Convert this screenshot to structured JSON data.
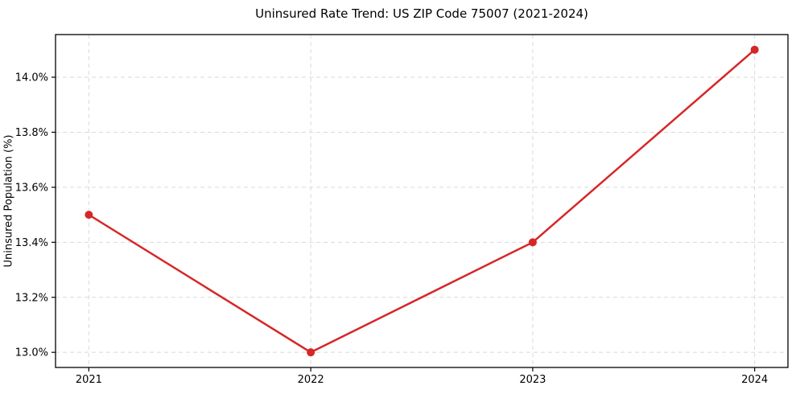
{
  "chart_data": {
    "type": "line",
    "title": "Uninsured Rate Trend: US ZIP Code 75007 (2021-2024)",
    "xlabel": "",
    "ylabel": "Uninsured Population (%)",
    "categories": [
      "2021",
      "2022",
      "2023",
      "2024"
    ],
    "x": [
      2021,
      2022,
      2023,
      2024
    ],
    "values": [
      13.5,
      13.0,
      13.4,
      14.1
    ],
    "yticks": [
      13.0,
      13.2,
      13.4,
      13.6,
      13.8,
      14.0
    ],
    "ytick_labels": [
      "13.0%",
      "13.2%",
      "13.4%",
      "13.6%",
      "13.8%",
      "14.0%"
    ],
    "xlim": [
      2020.85,
      2024.15
    ],
    "ylim": [
      12.945,
      14.155
    ],
    "grid": true,
    "grid_style": "dashed",
    "legend": "none",
    "line_color": "#d62728",
    "marker_color": "#d62728",
    "grid_color": "#d9d9d9",
    "spine_color": "#000000"
  }
}
